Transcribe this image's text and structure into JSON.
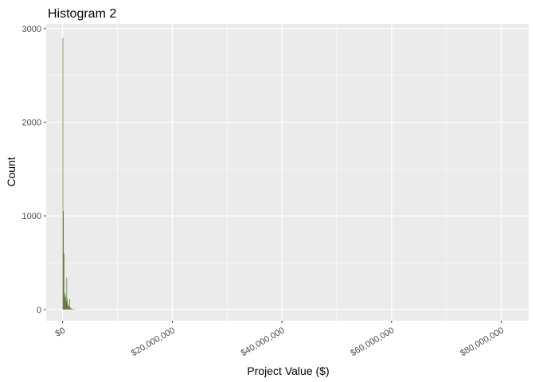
{
  "chart_data": {
    "type": "bar",
    "title": "Histogram 2",
    "xlabel": "Project Value ($)",
    "ylabel": "Count",
    "xlim": [
      -3000000,
      85000000
    ],
    "ylim": [
      -120,
      3050
    ],
    "x_ticks": [
      {
        "value": 0,
        "label": "$0"
      },
      {
        "value": 20000000,
        "label": "$20,000,000"
      },
      {
        "value": 40000000,
        "label": "$40,000,000"
      },
      {
        "value": 60000000,
        "label": "$60,000,000"
      },
      {
        "value": 80000000,
        "label": "$80,000,000"
      }
    ],
    "y_ticks": [
      {
        "value": 0,
        "label": "0"
      },
      {
        "value": 1000,
        "label": "1000"
      },
      {
        "value": 2000,
        "label": "2000"
      },
      {
        "value": 3000,
        "label": "3000"
      }
    ],
    "bin_width": 100000,
    "bins": [
      {
        "x": 0,
        "count": 2900
      },
      {
        "x": 100000,
        "count": 1050
      },
      {
        "x": 200000,
        "count": 600
      },
      {
        "x": 300000,
        "count": 180
      },
      {
        "x": 400000,
        "count": 130
      },
      {
        "x": 500000,
        "count": 150
      },
      {
        "x": 600000,
        "count": 90
      },
      {
        "x": 700000,
        "count": 340
      },
      {
        "x": 800000,
        "count": 120
      },
      {
        "x": 900000,
        "count": 60
      },
      {
        "x": 1000000,
        "count": 40
      },
      {
        "x": 1100000,
        "count": 30
      },
      {
        "x": 1200000,
        "count": 110
      },
      {
        "x": 1300000,
        "count": 25
      },
      {
        "x": 1400000,
        "count": 15
      },
      {
        "x": 1500000,
        "count": 10
      },
      {
        "x": 1600000,
        "count": 8
      },
      {
        "x": 1700000,
        "count": 6
      },
      {
        "x": 1800000,
        "count": 5
      },
      {
        "x": 1900000,
        "count": 4
      },
      {
        "x": 2000000,
        "count": 3
      },
      {
        "x": 2100000,
        "count": 3
      },
      {
        "x": 2200000,
        "count": 2
      },
      {
        "x": 2300000,
        "count": 2
      }
    ],
    "grid": true,
    "legend": "none",
    "colors": {
      "bar_fill": "#556b2f",
      "panel": "#ebebeb",
      "grid": "#ffffff"
    }
  }
}
